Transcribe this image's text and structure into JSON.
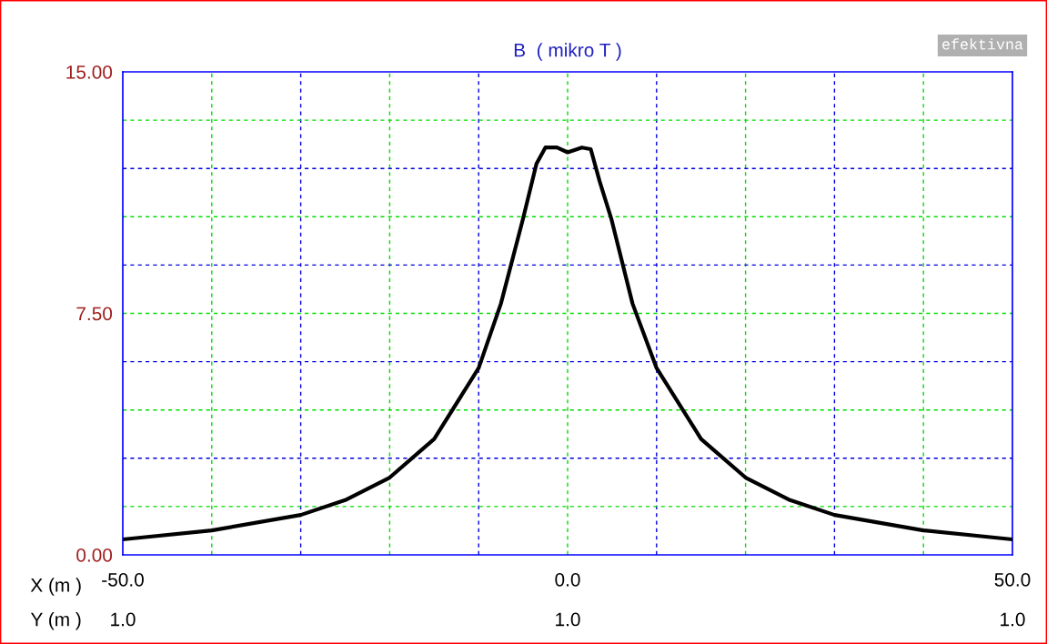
{
  "chart_data": {
    "type": "line",
    "title": "B  ( mikro T )",
    "xlabel": "X (m )",
    "x": [
      -50,
      -40,
      -30,
      -25,
      -20,
      -15,
      -10,
      -7.5,
      -5,
      -3.5,
      -2.5,
      -1.2,
      0,
      1.6,
      2.6,
      3.6,
      4.9,
      7.3,
      10,
      15,
      20,
      25,
      30,
      40,
      50
    ],
    "series": [
      {
        "color": "#000000",
        "values": [
          0.48,
          0.76,
          1.24,
          1.7,
          2.4,
          3.6,
          5.8,
          7.8,
          10.45,
          12.15,
          12.65,
          12.65,
          12.5,
          12.65,
          12.6,
          11.6,
          10.45,
          7.8,
          5.8,
          3.6,
          2.4,
          1.7,
          1.24,
          0.76,
          0.48
        ]
      }
    ],
    "xlim": [
      -50,
      50
    ],
    "xticks": [
      {
        "value": -50,
        "label": "-50.0"
      },
      {
        "value": -40,
        "label": null
      },
      {
        "value": -30,
        "label": null
      },
      {
        "value": -20,
        "label": null
      },
      {
        "value": -10,
        "label": null
      },
      {
        "value": 0,
        "label": "0.0"
      },
      {
        "value": 10,
        "label": null
      },
      {
        "value": 20,
        "label": null
      },
      {
        "value": 30,
        "label": null
      },
      {
        "value": 40,
        "label": null
      },
      {
        "value": 50,
        "label": "50.0"
      }
    ],
    "ylim": [
      0,
      15
    ],
    "yticks": [
      {
        "value": 0,
        "label": "0.00"
      },
      {
        "value": 1.5,
        "label": null
      },
      {
        "value": 3,
        "label": null
      },
      {
        "value": 4.5,
        "label": null
      },
      {
        "value": 6,
        "label": null
      },
      {
        "value": 7.5,
        "label": "7.50"
      },
      {
        "value": 9,
        "label": null
      },
      {
        "value": 10.5,
        "label": null
      },
      {
        "value": 12,
        "label": null
      },
      {
        "value": 13.5,
        "label": null
      },
      {
        "value": 15,
        "label": "15.00"
      }
    ],
    "grid": true,
    "legend": false,
    "marker": "none",
    "line_style": "solid",
    "annotations": [
      "efektivna",
      "Y (m )",
      "1.0",
      "1.0",
      "1.0"
    ]
  }
}
